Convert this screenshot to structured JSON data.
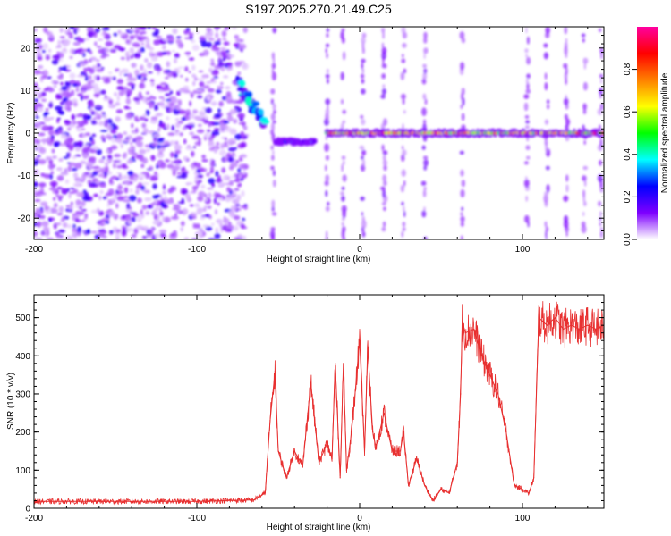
{
  "title": "S197.2025.270.21.49.C25",
  "chart_data": [
    {
      "type": "heatmap",
      "name": "spectrogram",
      "xlabel": "Height of straight line (km)",
      "ylabel": "Frequency (Hz)",
      "xlim": [
        -200,
        150
      ],
      "ylim": [
        -25,
        25
      ],
      "xticks": [
        -200,
        -100,
        0,
        100
      ],
      "yticks": [
        -20,
        -10,
        0,
        10,
        20
      ],
      "colorbar": {
        "label": "Normalized spectral amplitude",
        "range": [
          0,
          1
        ],
        "ticks": [
          "0.0",
          "0.2",
          "0.4",
          "0.6",
          "0.8"
        ],
        "colors": [
          "#ffffff",
          "#7e00ff",
          "#0000ff",
          "#00ffff",
          "#00ff00",
          "#ffff00",
          "#ff8000",
          "#ff0000",
          "#ff00a0"
        ]
      },
      "regions": [
        {
          "x_from": -200,
          "x_to": -70,
          "kind": "broadband noise",
          "amplitude": 0.15
        },
        {
          "x_from": -75,
          "x_to": -58,
          "kind": "descending trace",
          "freq_start": 12,
          "freq_end": 2,
          "amplitude": 0.3
        },
        {
          "x_from": -52,
          "x_to": -28,
          "kind": "narrowband",
          "freq": -2,
          "amplitude": 0.35
        },
        {
          "x_from": -20,
          "x_to": 150,
          "kind": "narrowband carrier",
          "freq": 0,
          "amplitude": 0.9
        }
      ],
      "vertical_streaks_km": [
        -53,
        -20,
        -10,
        2,
        15,
        27,
        40,
        63,
        103,
        115,
        127,
        138,
        148
      ]
    },
    {
      "type": "line",
      "name": "snr",
      "xlabel": "Height of straight line (km)",
      "ylabel": "SNR (10 * v/v)",
      "xlim": [
        -200,
        150
      ],
      "ylim": [
        0,
        560
      ],
      "xticks": [
        -200,
        -100,
        0,
        100
      ],
      "yticks": [
        0,
        100,
        200,
        300,
        400,
        500
      ],
      "color": "#e83030",
      "series": [
        {
          "name": "SNR",
          "x": [
            -200,
            -150,
            -100,
            -65,
            -58,
            -55,
            -52,
            -50,
            -45,
            -40,
            -35,
            -30,
            -25,
            -20,
            -17,
            -15,
            -12,
            -10,
            -8,
            -5,
            -3,
            0,
            3,
            5,
            8,
            10,
            15,
            20,
            25,
            27,
            30,
            35,
            40,
            45,
            50,
            55,
            60,
            62,
            63,
            65,
            70,
            75,
            80,
            85,
            90,
            95,
            100,
            104,
            107,
            110,
            115,
            120,
            125,
            130,
            135,
            140,
            145,
            150
          ],
          "y": [
            18,
            18,
            18,
            22,
            40,
            230,
            360,
            150,
            80,
            150,
            110,
            330,
            120,
            170,
            130,
            380,
            80,
            380,
            100,
            200,
            290,
            440,
            150,
            420,
            200,
            160,
            250,
            150,
            150,
            200,
            60,
            130,
            60,
            20,
            50,
            40,
            120,
            300,
            490,
            460,
            470,
            400,
            350,
            300,
            200,
            60,
            50,
            40,
            80,
            500,
            480,
            500,
            470,
            480,
            470,
            480,
            470,
            480
          ]
        }
      ]
    }
  ]
}
